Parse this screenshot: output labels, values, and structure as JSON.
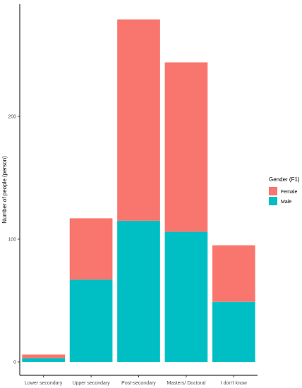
{
  "chart_data": {
    "type": "bar",
    "stacked": true,
    "categories": [
      "Lower secondary",
      "Upper secondary",
      "Post-secondary",
      "Masters/ Doctoral",
      "I don't know"
    ],
    "series": [
      {
        "name": "Male",
        "values": [
          3,
          67,
          115,
          106,
          49
        ],
        "color": "#00BFC4"
      },
      {
        "name": "Female",
        "values": [
          3,
          50,
          164,
          138,
          46
        ],
        "color": "#F8766D"
      }
    ],
    "xlabel": "",
    "ylabel": "Number of people (person)",
    "yticks": [
      0,
      100,
      200
    ],
    "ylim": [
      0,
      285
    ],
    "legend": {
      "title": "Gender (F1)",
      "position": "right",
      "entries": [
        "Female",
        "Male"
      ]
    },
    "grid": false
  }
}
